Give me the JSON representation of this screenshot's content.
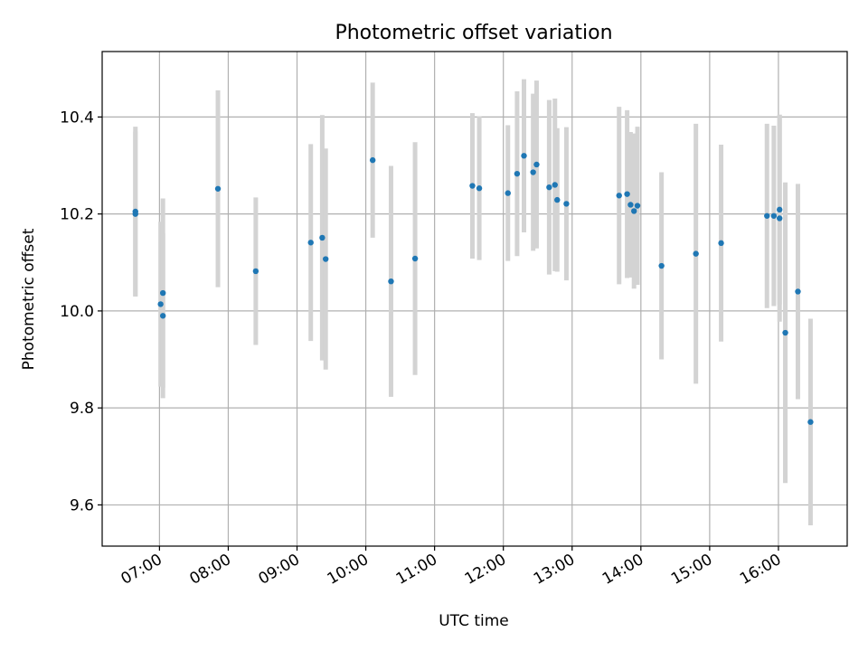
{
  "chart_data": {
    "type": "scatter",
    "title": "Photometric offset variation",
    "xlabel": "UTC time",
    "ylabel": "Photometric offset",
    "xlim": [
      "06:10",
      "17:00"
    ],
    "ylim": [
      9.515,
      10.535
    ],
    "grid": true,
    "x_ticks": [
      "07:00",
      "08:00",
      "09:00",
      "10:00",
      "11:00",
      "12:00",
      "13:00",
      "14:00",
      "15:00",
      "16:00"
    ],
    "y_ticks": [
      "9.6",
      "9.8",
      "10.0",
      "10.2",
      "10.4"
    ],
    "marker_color": "#1f77b4",
    "errorbar_color": "#d3d3d3",
    "points": [
      {
        "x": "06:39",
        "y": 10.205,
        "err": 0.175
      },
      {
        "x": "06:39",
        "y": 10.2,
        "err": 0.17
      },
      {
        "x": "07:01",
        "y": 10.014,
        "err": 0.17
      },
      {
        "x": "07:03",
        "y": 10.037,
        "err": 0.195
      },
      {
        "x": "07:03",
        "y": 9.99,
        "err": 0.17
      },
      {
        "x": "07:51",
        "y": 10.252,
        "err": 0.203
      },
      {
        "x": "08:24",
        "y": 10.082,
        "err": 0.152
      },
      {
        "x": "09:12",
        "y": 10.141,
        "err": 0.203
      },
      {
        "x": "09:22",
        "y": 10.151,
        "err": 0.253
      },
      {
        "x": "09:25",
        "y": 10.107,
        "err": 0.228
      },
      {
        "x": "10:06",
        "y": 10.311,
        "err": 0.16
      },
      {
        "x": "10:22",
        "y": 10.061,
        "err": 0.238
      },
      {
        "x": "10:43",
        "y": 10.108,
        "err": 0.24
      },
      {
        "x": "11:33",
        "y": 10.258,
        "err": 0.15
      },
      {
        "x": "11:39",
        "y": 10.253,
        "err": 0.148
      },
      {
        "x": "12:04",
        "y": 10.243,
        "err": 0.14
      },
      {
        "x": "12:12",
        "y": 10.283,
        "err": 0.17
      },
      {
        "x": "12:18",
        "y": 10.32,
        "err": 0.158
      },
      {
        "x": "12:26",
        "y": 10.286,
        "err": 0.162
      },
      {
        "x": "12:29",
        "y": 10.302,
        "err": 0.173
      },
      {
        "x": "12:40",
        "y": 10.255,
        "err": 0.18
      },
      {
        "x": "12:45",
        "y": 10.26,
        "err": 0.178
      },
      {
        "x": "12:47",
        "y": 10.229,
        "err": 0.148
      },
      {
        "x": "12:55",
        "y": 10.221,
        "err": 0.158
      },
      {
        "x": "13:41",
        "y": 10.238,
        "err": 0.183
      },
      {
        "x": "13:48",
        "y": 10.241,
        "err": 0.173
      },
      {
        "x": "13:51",
        "y": 10.219,
        "err": 0.15
      },
      {
        "x": "13:54",
        "y": 10.206,
        "err": 0.16
      },
      {
        "x": "13:57",
        "y": 10.217,
        "err": 0.163
      },
      {
        "x": "14:18",
        "y": 10.093,
        "err": 0.193
      },
      {
        "x": "14:48",
        "y": 10.118,
        "err": 0.268
      },
      {
        "x": "15:10",
        "y": 10.14,
        "err": 0.203
      },
      {
        "x": "15:50",
        "y": 10.196,
        "err": 0.19
      },
      {
        "x": "15:56",
        "y": 10.196,
        "err": 0.186
      },
      {
        "x": "16:01",
        "y": 10.209,
        "err": 0.196
      },
      {
        "x": "16:01",
        "y": 10.191,
        "err": 0.213
      },
      {
        "x": "16:06",
        "y": 9.955,
        "err": 0.31
      },
      {
        "x": "16:17",
        "y": 10.04,
        "err": 0.222
      },
      {
        "x": "16:28",
        "y": 9.771,
        "err": 0.213
      }
    ]
  }
}
